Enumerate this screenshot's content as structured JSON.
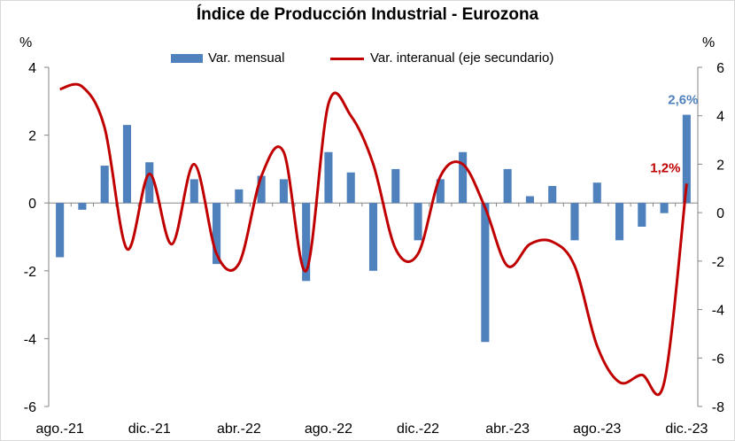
{
  "chart_data": {
    "type": "bar+line",
    "title": "Índice de Producción Industrial - Eurozona",
    "y_left_label": "%",
    "y_right_label": "%",
    "y_left_lim": [
      -6,
      4
    ],
    "y_left_ticks": [
      "4",
      "2",
      "0",
      "-2",
      "-4",
      "-6"
    ],
    "y_right_lim": [
      -8,
      6
    ],
    "y_right_ticks": [
      "6",
      "4",
      "2",
      "0",
      "-2",
      "-4",
      "-6",
      "-8"
    ],
    "x_tick_labels": [
      "ago.-21",
      "dic.-21",
      "abr.-22",
      "ago.-22",
      "dic.-22",
      "abr.-23",
      "ago.-23",
      "dic.-23"
    ],
    "legend_position": "top",
    "series": [
      {
        "name": "Var. mensual",
        "type": "bar",
        "axis": "left",
        "color": "#4f81bd",
        "values": [
          -1.6,
          -0.2,
          1.1,
          2.3,
          1.2,
          0.0,
          0.7,
          -1.8,
          0.4,
          0.8,
          0.7,
          -2.3,
          1.5,
          0.9,
          -2.0,
          1.0,
          -1.1,
          0.7,
          1.5,
          -4.1,
          1.0,
          0.2,
          0.5,
          -1.1,
          0.6,
          -1.1,
          -0.7,
          -0.3,
          2.6
        ]
      },
      {
        "name": "Var. interanual (eje secundario)",
        "type": "line",
        "axis": "right",
        "color": "#c00000",
        "values": [
          5.1,
          5.2,
          3.5,
          -1.5,
          1.6,
          -1.3,
          2.0,
          -1.7,
          -2.1,
          1.5,
          2.5,
          -2.4,
          4.5,
          4.0,
          2.0,
          -1.5,
          -1.7,
          1.5,
          2.0,
          0.2,
          -2.2,
          -1.3,
          -1.2,
          -2.2,
          -5.5,
          -7.0,
          -6.7,
          -7.0,
          1.2
        ]
      }
    ],
    "annotations": [
      {
        "text": "2,6%",
        "color": "#4f81bd"
      },
      {
        "text": "1,2%",
        "color": "#c00000"
      }
    ]
  }
}
